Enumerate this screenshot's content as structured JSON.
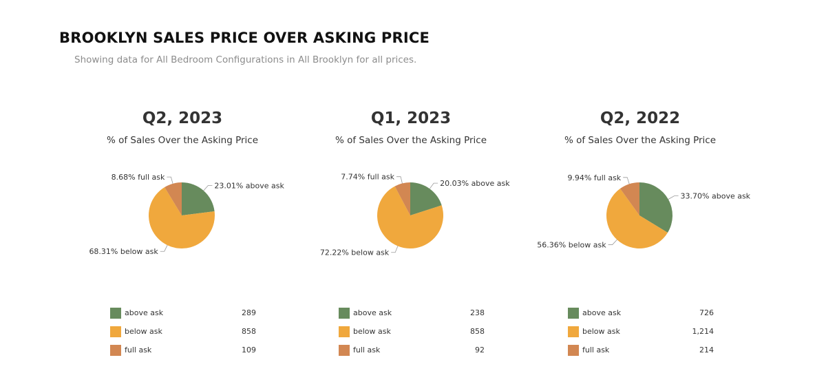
{
  "page": {
    "title": "BROOKLYN SALES PRICE OVER ASKING PRICE",
    "subtitle": "Showing data for All Bedroom Configurations in All Brooklyn for all prices."
  },
  "colors": {
    "above ask": "#678b5d",
    "below ask": "#f0a83d",
    "full ask": "#d28752"
  },
  "chart_data": [
    {
      "type": "pie",
      "title": "Q2, 2023",
      "subtitle": "% of Sales Over the Asking Price",
      "legend": "bottom",
      "slices": [
        {
          "label": "above ask",
          "percent_label": "23.01% above ask",
          "value": 289
        },
        {
          "label": "below ask",
          "percent_label": "68.31% below ask",
          "value": 858
        },
        {
          "label": "full ask",
          "percent_label": "8.68% full ask",
          "value": 109
        }
      ],
      "legend_counts": [
        "289",
        "858",
        "109"
      ]
    },
    {
      "type": "pie",
      "title": "Q1, 2023",
      "subtitle": "% of Sales Over the Asking Price",
      "legend": "bottom",
      "slices": [
        {
          "label": "above ask",
          "percent_label": "20.03% above ask",
          "value": 238
        },
        {
          "label": "below ask",
          "percent_label": "72.22% below ask",
          "value": 858
        },
        {
          "label": "full ask",
          "percent_label": "7.74% full ask",
          "value": 92
        }
      ],
      "legend_counts": [
        "238",
        "858",
        "92"
      ]
    },
    {
      "type": "pie",
      "title": "Q2, 2022",
      "subtitle": "% of Sales Over the Asking Price",
      "legend": "bottom",
      "slices": [
        {
          "label": "above ask",
          "percent_label": "33.70% above ask",
          "value": 726
        },
        {
          "label": "below ask",
          "percent_label": "56.36% below ask",
          "value": 1214
        },
        {
          "label": "full ask",
          "percent_label": "9.94% full ask",
          "value": 214
        }
      ],
      "legend_counts": [
        "726",
        "1,214",
        "214"
      ]
    }
  ]
}
